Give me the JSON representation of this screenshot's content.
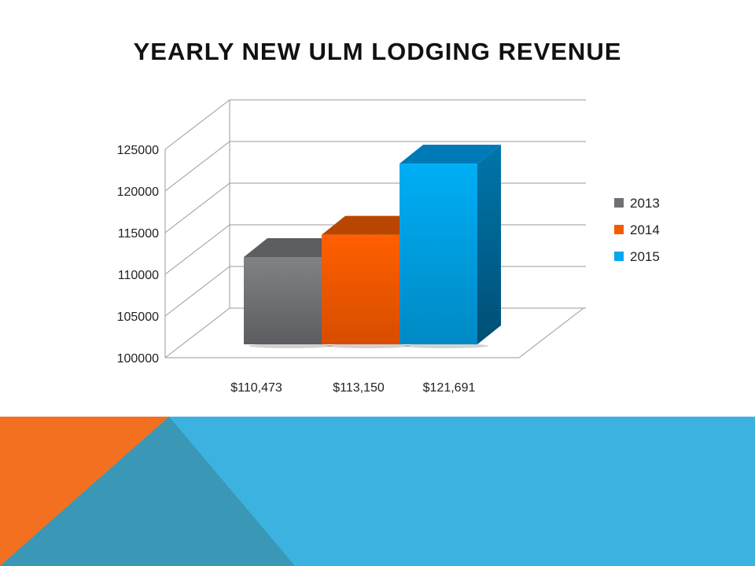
{
  "slide": {
    "title": "YEARLY NEW ULM LODGING REVENUE"
  },
  "chart_data": {
    "type": "bar",
    "style": "3d-column",
    "categories": [
      "$110,473",
      "$113,150",
      "$121,691"
    ],
    "series": [
      {
        "name": "2013",
        "values": [
          110473,
          null,
          null
        ],
        "color": "#6e7073"
      },
      {
        "name": "2014",
        "values": [
          null,
          113150,
          null
        ],
        "color": "#f55a00"
      },
      {
        "name": "2015",
        "values": [
          null,
          null,
          121691
        ],
        "color": "#00a8f0"
      }
    ],
    "title": "",
    "xlabel": "",
    "ylabel": "",
    "ylim": [
      100000,
      125000
    ],
    "yticks": [
      "100000",
      "105000",
      "110000",
      "115000",
      "120000",
      "125000"
    ],
    "grid": true,
    "legend_position": "right"
  },
  "decor": {
    "accent_orange": "#f37021",
    "accent_blue": "#3bb2e0",
    "accent_blue_dark": "#3a97b5"
  }
}
